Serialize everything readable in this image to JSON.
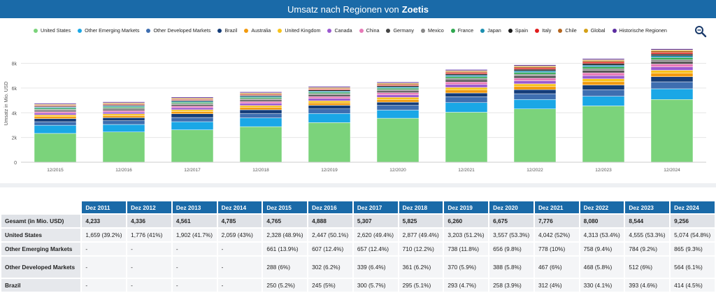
{
  "header": {
    "title_prefix": "Umsatz nach Regionen von",
    "title_company": "Zoetis"
  },
  "chart_data": {
    "type": "bar",
    "stacked": true,
    "ylabel": "Umsatz in Mio. USD",
    "ylim": [
      0,
      9500
    ],
    "yticks": [
      0,
      2000,
      4000,
      6000,
      8000
    ],
    "ytick_labels": [
      "0",
      "2k",
      "4k",
      "6k",
      "8k"
    ],
    "categories": [
      "12/2015",
      "12/2016",
      "12/2017",
      "12/2018",
      "12/2019",
      "12/2020",
      "12/2021",
      "12/2022",
      "12/2023",
      "12/2024"
    ],
    "series": [
      {
        "name": "United States",
        "color": "#7bd37b",
        "values": [
          2328,
          2447,
          2620,
          2877,
          3203,
          3557,
          4042,
          4313,
          4555,
          5074
        ]
      },
      {
        "name": "Other Emerging Markets",
        "color": "#1aa7e6",
        "values": [
          661,
          607,
          657,
          710,
          738,
          656,
          778,
          758,
          784,
          865
        ]
      },
      {
        "name": "Other Developed Markets",
        "color": "#3e6eb0",
        "values": [
          288,
          302,
          339,
          361,
          370,
          388,
          467,
          468,
          512,
          564
        ]
      },
      {
        "name": "Brazil",
        "color": "#143c78",
        "values": [
          250,
          245,
          300,
          295,
          293,
          258,
          312,
          330,
          393,
          414
        ]
      },
      {
        "name": "Australia",
        "color": "#f29a0e",
        "values": [
          160,
          165,
          180,
          185,
          195,
          210,
          240,
          250,
          270,
          280
        ]
      },
      {
        "name": "United Kingdom",
        "color": "#f7c21a",
        "values": [
          140,
          145,
          150,
          160,
          170,
          180,
          210,
          220,
          230,
          240
        ]
      },
      {
        "name": "Canada",
        "color": "#9b59d0",
        "values": [
          150,
          155,
          170,
          180,
          190,
          200,
          240,
          250,
          260,
          270
        ]
      },
      {
        "name": "China",
        "color": "#e87ab8",
        "values": [
          110,
          115,
          130,
          150,
          160,
          180,
          210,
          220,
          230,
          240
        ]
      },
      {
        "name": "Germany",
        "color": "#444444",
        "values": [
          100,
          105,
          110,
          120,
          130,
          140,
          160,
          170,
          180,
          190
        ]
      },
      {
        "name": "Mexico",
        "color": "#888888",
        "values": [
          90,
          92,
          95,
          100,
          105,
          110,
          130,
          140,
          150,
          160
        ]
      },
      {
        "name": "France",
        "color": "#2fa84f",
        "values": [
          90,
          92,
          95,
          100,
          105,
          110,
          130,
          140,
          150,
          160
        ]
      },
      {
        "name": "Japan",
        "color": "#1b8fb0",
        "values": [
          80,
          82,
          85,
          90,
          95,
          100,
          120,
          130,
          140,
          150
        ]
      },
      {
        "name": "Spain",
        "color": "#1a1a1a",
        "values": [
          70,
          72,
          75,
          80,
          85,
          90,
          110,
          120,
          130,
          140
        ]
      },
      {
        "name": "Italy",
        "color": "#e11d1d",
        "values": [
          60,
          62,
          65,
          70,
          75,
          80,
          100,
          110,
          120,
          130
        ]
      },
      {
        "name": "Chile",
        "color": "#b5651d",
        "values": [
          60,
          62,
          65,
          70,
          75,
          80,
          100,
          110,
          120,
          130
        ]
      },
      {
        "name": "Global",
        "color": "#d4a017",
        "values": [
          58,
          60,
          60,
          60,
          61,
          63,
          61,
          65,
          66,
          80
        ]
      },
      {
        "name": "Historische Regionen",
        "color": "#5b2ca0",
        "values": [
          80,
          80,
          80,
          82,
          84,
          86,
          86,
          86,
          88,
          90
        ]
      }
    ]
  },
  "table": {
    "headers": [
      "Dez 2011",
      "Dez 2012",
      "Dez 2013",
      "Dez 2014",
      "Dez 2015",
      "Dez 2016",
      "Dez 2017",
      "Dez 2018",
      "Dez 2019",
      "Dez 2020",
      "Dez 2021",
      "Dez 2022",
      "Dez 2023",
      "Dez 2024"
    ],
    "rows": [
      {
        "label": "Gesamt (in Mio. USD)",
        "cells": [
          "4,233",
          "4,336",
          "4,561",
          "4,785",
          "4,765",
          "4,888",
          "5,307",
          "5,825",
          "6,260",
          "6,675",
          "7,776",
          "8,080",
          "8,544",
          "9,256"
        ]
      },
      {
        "label": "United States",
        "cells": [
          "1,659 (39.2%)",
          "1,776 (41%)",
          "1,902 (41.7%)",
          "2,059 (43%)",
          "2,328 (48.9%)",
          "2,447 (50.1%)",
          "2,620 (49.4%)",
          "2,877 (49.4%)",
          "3,203 (51.2%)",
          "3,557 (53.3%)",
          "4,042 (52%)",
          "4,313 (53.4%)",
          "4,555 (53.3%)",
          "5,074 (54.8%)"
        ]
      },
      {
        "label": "Other Emerging Markets",
        "cells": [
          "-",
          "-",
          "-",
          "-",
          "661 (13.9%)",
          "607 (12.4%)",
          "657 (12.4%)",
          "710 (12.2%)",
          "738 (11.8%)",
          "656 (9.8%)",
          "778 (10%)",
          "758 (9.4%)",
          "784 (9.2%)",
          "865 (9.3%)"
        ]
      },
      {
        "label": "Other Developed Markets",
        "cells": [
          "-",
          "-",
          "-",
          "-",
          "288 (6%)",
          "302 (6.2%)",
          "339 (6.4%)",
          "361 (6.2%)",
          "370 (5.9%)",
          "388 (5.8%)",
          "467 (6%)",
          "468 (5.8%)",
          "512 (6%)",
          "564 (6.1%)"
        ]
      },
      {
        "label": "Brazil",
        "cells": [
          "-",
          "-",
          "-",
          "-",
          "250 (5.2%)",
          "245 (5%)",
          "300 (5.7%)",
          "295 (5.1%)",
          "293 (4.7%)",
          "258 (3.9%)",
          "312 (4%)",
          "330 (4.1%)",
          "393 (4.6%)",
          "414 (4.5%)"
        ]
      }
    ]
  }
}
